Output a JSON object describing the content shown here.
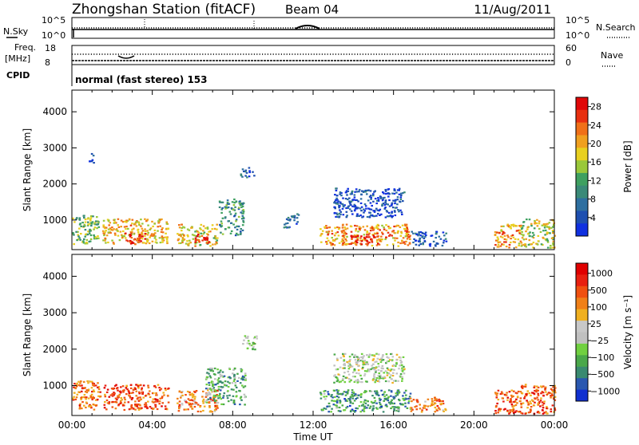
{
  "header": {
    "station": "Zhongshan Station (fitACF)",
    "beam": "Beam 04",
    "date": "11/Aug/2011"
  },
  "top_panels": {
    "nsky_label": "N.Sky",
    "nsky_ticks": [
      "10^5",
      "10^0"
    ],
    "nsearch_label": "N.Search",
    "nsearch_ticks": [
      "10^5",
      "10^0"
    ],
    "freq_label": "Freq.",
    "freq_unit": "[MHz]",
    "freq_ticks": [
      "18",
      "8"
    ],
    "nave_label": "Nave",
    "nave_ticks": [
      "60",
      "0"
    ],
    "cpid_label": "CPID",
    "cpid_text": "normal (fast stereo) 153"
  },
  "chart_data": [
    {
      "type": "heatmap",
      "name_id": "power",
      "ylabel": "Slant Range [km]",
      "xlabel": "Time UT",
      "x_ticks": [
        "00:00",
        "04:00",
        "08:00",
        "12:00",
        "16:00",
        "20:00",
        "00:00"
      ],
      "xlim_hours": [
        0,
        24
      ],
      "y_ticks": [
        1000,
        2000,
        3000,
        4000
      ],
      "ylim": [
        180,
        4600
      ],
      "colorbar": {
        "label": "Power [dB]",
        "ticks": [
          "4",
          "8",
          "12",
          "16",
          "20",
          "24",
          "28"
        ],
        "colors": [
          "#1030e0",
          "#1e4fb0",
          "#2e6fa0",
          "#3a8a78",
          "#3ea060",
          "#9ac83a",
          "#e8d020",
          "#f0a020",
          "#f07018",
          "#e83010",
          "#e00808"
        ]
      },
      "echo_regions": [
        {
          "t0": 0.0,
          "t1": 1.3,
          "r0": 350,
          "r1": 1150,
          "level": 0.45
        },
        {
          "t0": 0.8,
          "t1": 1.1,
          "r0": 2600,
          "r1": 2900,
          "level": 0.1
        },
        {
          "t0": 1.5,
          "t1": 4.8,
          "r0": 350,
          "r1": 1050,
          "level": 0.65
        },
        {
          "t0": 2.6,
          "t1": 3.6,
          "r0": 350,
          "r1": 700,
          "level": 0.85
        },
        {
          "t0": 5.2,
          "t1": 7.2,
          "r0": 300,
          "r1": 900,
          "level": 0.6
        },
        {
          "t0": 6.0,
          "t1": 6.8,
          "r0": 350,
          "r1": 650,
          "level": 0.9
        },
        {
          "t0": 7.3,
          "t1": 8.5,
          "r0": 600,
          "r1": 1600,
          "level": 0.3
        },
        {
          "t0": 8.3,
          "t1": 9.1,
          "r0": 2200,
          "r1": 2500,
          "level": 0.15
        },
        {
          "t0": 10.5,
          "t1": 11.3,
          "r0": 800,
          "r1": 1200,
          "level": 0.2
        },
        {
          "t0": 12.3,
          "t1": 16.8,
          "r0": 300,
          "r1": 900,
          "level": 0.7
        },
        {
          "t0": 13.5,
          "t1": 15.2,
          "r0": 350,
          "r1": 600,
          "level": 0.95
        },
        {
          "t0": 13.0,
          "t1": 16.5,
          "r0": 1100,
          "r1": 1900,
          "level": 0.12
        },
        {
          "t0": 16.8,
          "t1": 18.6,
          "r0": 300,
          "r1": 700,
          "level": 0.15
        },
        {
          "t0": 21.0,
          "t1": 22.3,
          "r0": 250,
          "r1": 900,
          "level": 0.7
        },
        {
          "t0": 22.3,
          "t1": 24.0,
          "r0": 250,
          "r1": 1050,
          "level": 0.55
        }
      ]
    },
    {
      "type": "heatmap",
      "name_id": "velocity",
      "ylabel": "Slant Range [km]",
      "xlabel": "Time UT",
      "x_ticks": [
        "00:00",
        "04:00",
        "08:00",
        "12:00",
        "16:00",
        "20:00",
        "00:00"
      ],
      "xlim_hours": [
        0,
        24
      ],
      "y_ticks": [
        1000,
        2000,
        3000,
        4000
      ],
      "ylim": [
        180,
        4600
      ],
      "colorbar": {
        "label": "Velocity [m s⁻¹]",
        "ticks": [
          "1000",
          "500",
          "100",
          "25",
          "−25",
          "−100",
          "−500",
          "−1000"
        ],
        "colors": [
          "#1030d0",
          "#2a58b0",
          "#3a8a70",
          "#4aa84a",
          "#70d040",
          "#c0c0c0",
          "#c8c8c8",
          "#f0b020",
          "#f08018",
          "#f05010",
          "#e82010",
          "#e00000"
        ]
      },
      "echo_regions": [
        {
          "t0": 0.0,
          "t1": 1.4,
          "r0": 350,
          "r1": 1150,
          "level": 0.75
        },
        {
          "t0": 1.5,
          "t1": 4.8,
          "r0": 350,
          "r1": 1050,
          "level": 0.8
        },
        {
          "t0": 5.2,
          "t1": 7.2,
          "r0": 300,
          "r1": 900,
          "level": 0.7
        },
        {
          "t0": 6.6,
          "t1": 8.6,
          "r0": 500,
          "r1": 1500,
          "level": 0.3
        },
        {
          "t0": 8.4,
          "t1": 9.2,
          "r0": 2000,
          "r1": 2400,
          "level": 0.45
        },
        {
          "t0": 12.3,
          "t1": 16.8,
          "r0": 300,
          "r1": 900,
          "level": 0.25
        },
        {
          "t0": 13.0,
          "t1": 16.5,
          "r0": 1100,
          "r1": 1900,
          "level": 0.45
        },
        {
          "t0": 16.8,
          "t1": 18.6,
          "r0": 300,
          "r1": 700,
          "level": 0.75
        },
        {
          "t0": 21.0,
          "t1": 22.3,
          "r0": 250,
          "r1": 900,
          "level": 0.8
        },
        {
          "t0": 22.3,
          "t1": 24.0,
          "r0": 250,
          "r1": 1050,
          "level": 0.78
        }
      ]
    }
  ]
}
